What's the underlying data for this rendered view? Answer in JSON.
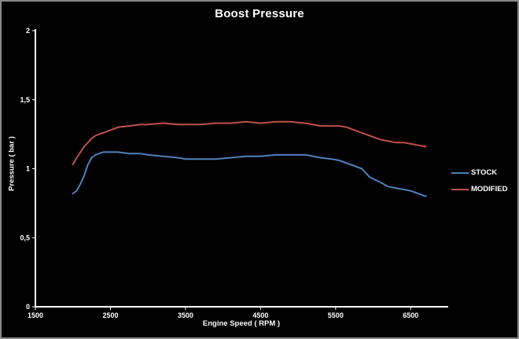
{
  "chart_data": {
    "type": "line",
    "title": "Boost Pressure",
    "xlabel": "Engine Speed ( RPM )",
    "ylabel": "Pressure ( bar )",
    "xlim": [
      1500,
      7000
    ],
    "ylim": [
      0,
      2
    ],
    "x_tick_values": [
      1500,
      2500,
      3500,
      4500,
      5500,
      6500
    ],
    "x_tick_labels": [
      "1500",
      "2500",
      "3500",
      "4500",
      "5500",
      "6500"
    ],
    "y_tick_values": [
      0,
      0.5,
      1,
      1.5,
      2
    ],
    "y_tick_labels": [
      "0",
      "0,5",
      "1",
      "1,5",
      "2"
    ],
    "grid": false,
    "legend_position": "right",
    "background_color": "#000000",
    "axis_color": "#ffffff",
    "x": [
      2000,
      2050,
      2100,
      2150,
      2200,
      2250,
      2300,
      2400,
      2500,
      2600,
      2750,
      2900,
      3000,
      3200,
      3400,
      3500,
      3700,
      3900,
      4100,
      4300,
      4500,
      4700,
      4900,
      5100,
      5300,
      5450,
      5550,
      5650,
      5750,
      5850,
      5950,
      6100,
      6200,
      6300,
      6400,
      6500,
      6600,
      6700
    ],
    "series": [
      {
        "name": "STOCK",
        "color": "#4f81bd",
        "values": [
          0.82,
          0.84,
          0.89,
          0.95,
          1.03,
          1.08,
          1.1,
          1.12,
          1.12,
          1.12,
          1.11,
          1.11,
          1.1,
          1.09,
          1.08,
          1.07,
          1.07,
          1.07,
          1.08,
          1.09,
          1.09,
          1.1,
          1.1,
          1.1,
          1.08,
          1.07,
          1.06,
          1.04,
          1.02,
          1.0,
          0.94,
          0.9,
          0.87,
          0.86,
          0.85,
          0.84,
          0.82,
          0.8
        ]
      },
      {
        "name": "MODIFIED",
        "color": "#c0504d",
        "values": [
          1.03,
          1.08,
          1.12,
          1.16,
          1.19,
          1.22,
          1.24,
          1.26,
          1.28,
          1.3,
          1.31,
          1.32,
          1.32,
          1.33,
          1.32,
          1.32,
          1.32,
          1.33,
          1.33,
          1.34,
          1.33,
          1.34,
          1.34,
          1.33,
          1.31,
          1.31,
          1.31,
          1.3,
          1.28,
          1.26,
          1.24,
          1.21,
          1.2,
          1.19,
          1.19,
          1.18,
          1.17,
          1.16
        ]
      }
    ]
  }
}
